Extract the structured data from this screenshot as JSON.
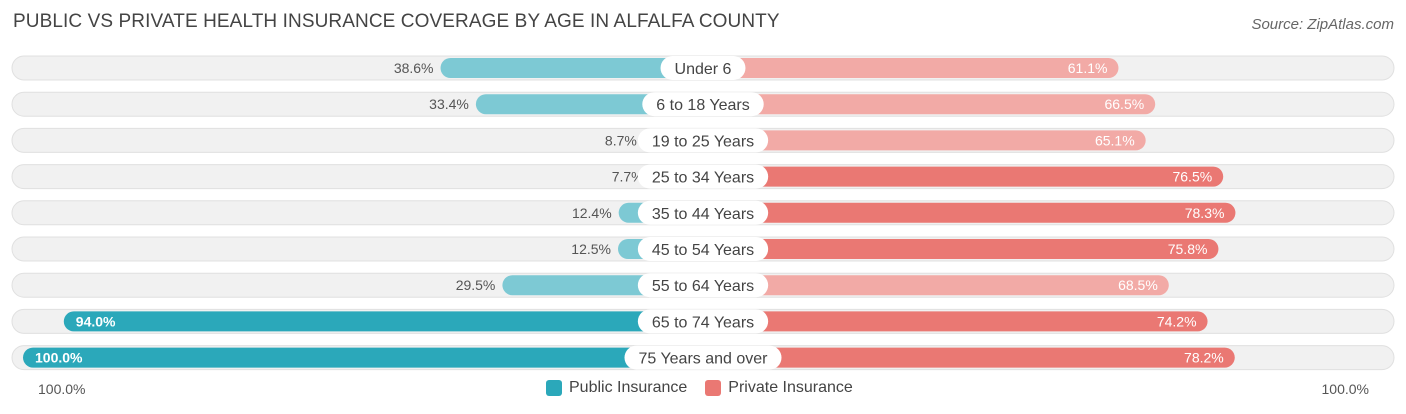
{
  "header": {
    "title": "PUBLIC VS PRIVATE HEALTH INSURANCE COVERAGE BY AGE IN ALFALFA COUNTY",
    "source": "Source: ZipAtlas.com"
  },
  "axis": {
    "left_label": "100.0%",
    "right_label": "100.0%"
  },
  "legend": [
    {
      "label": "Public Insurance",
      "color": "#2ba8ba"
    },
    {
      "label": "Private Insurance",
      "color": "#ea7873"
    }
  ],
  "colors": {
    "public_strong": "#2ba8ba",
    "public_light": "#7dc9d4",
    "private_strong": "#ea7873",
    "private_light": "#f2aaa6",
    "track": "#f1f1f1",
    "track_border": "#e0e0e0"
  },
  "chart_data": {
    "type": "bar",
    "orientation": "horizontal-diverging",
    "title": "PUBLIC VS PRIVATE HEALTH INSURANCE COVERAGE BY AGE IN ALFALFA COUNTY",
    "categories": [
      "Under 6",
      "6 to 18 Years",
      "19 to 25 Years",
      "25 to 34 Years",
      "35 to 44 Years",
      "45 to 54 Years",
      "55 to 64 Years",
      "65 to 74 Years",
      "75 Years and over"
    ],
    "series": [
      {
        "name": "Public Insurance",
        "values": [
          38.6,
          33.4,
          8.7,
          7.7,
          12.4,
          12.5,
          29.5,
          94.0,
          100.0
        ],
        "labels": [
          "38.6%",
          "33.4%",
          "8.7%",
          "7.7%",
          "12.4%",
          "12.5%",
          "29.5%",
          "94.0%",
          "100.0%"
        ]
      },
      {
        "name": "Private Insurance",
        "values": [
          61.1,
          66.5,
          65.1,
          76.5,
          78.3,
          75.8,
          68.5,
          74.2,
          78.2
        ],
        "labels": [
          "61.1%",
          "66.5%",
          "65.1%",
          "76.5%",
          "78.3%",
          "75.8%",
          "68.5%",
          "74.2%",
          "78.2%"
        ]
      }
    ],
    "xlim": [
      0,
      100
    ],
    "legend_position": "bottom-center",
    "grid": false
  }
}
